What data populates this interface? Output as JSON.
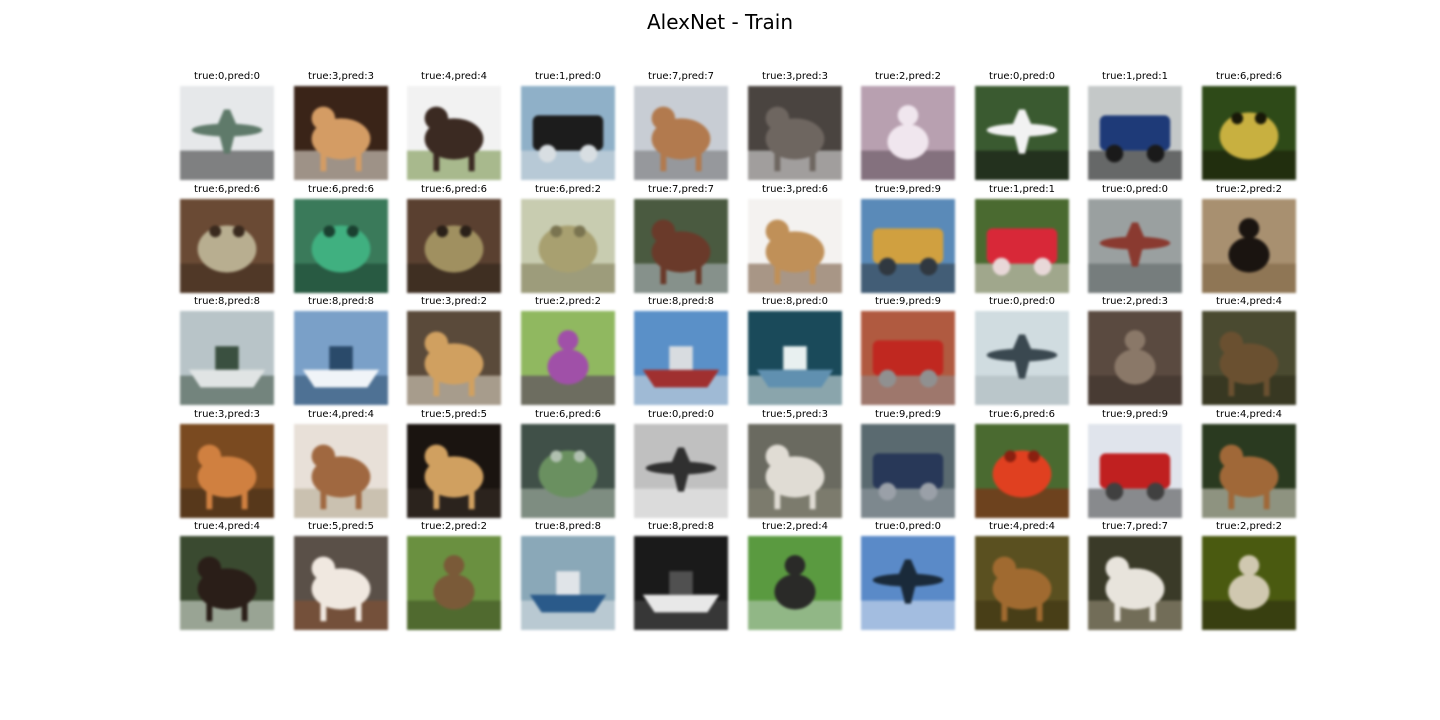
{
  "figure": {
    "title": "AlexNet - Train"
  },
  "samples": [
    {
      "label": "true:0,pred:0",
      "subject": "airplane-model",
      "bg": "#e6e8ea",
      "accent": "#5f7a6a",
      "dark": "#2a2a2a"
    },
    {
      "label": "true:3,pred:3",
      "subject": "cat-orange",
      "bg": "#3a2418",
      "accent": "#d49c64",
      "dark": "#f0ece4"
    },
    {
      "label": "true:4,pred:4",
      "subject": "deer-antlers",
      "bg": "#f2f2f2",
      "accent": "#3b2a22",
      "dark": "#6c8a3a"
    },
    {
      "label": "true:1,pred:0",
      "subject": "car-toy",
      "bg": "#8fb0c8",
      "accent": "#1c1c1c",
      "dark": "#d8dee2"
    },
    {
      "label": "true:7,pred:7",
      "subject": "horse-brown",
      "bg": "#c8cdd4",
      "accent": "#b27a4e",
      "dark": "#6d6d6d"
    },
    {
      "label": "true:3,pred:3",
      "subject": "cat-grey",
      "bg": "#4a4440",
      "accent": "#6e6660",
      "dark": "#e9e9e9"
    },
    {
      "label": "true:2,pred:2",
      "subject": "bird-pink",
      "bg": "#b8a0b0",
      "accent": "#f0e6ee",
      "dark": "#5a4a56"
    },
    {
      "label": "true:0,pred:0",
      "subject": "airplane-grass",
      "bg": "#3a5a30",
      "accent": "#f2f2f2",
      "dark": "#101010"
    },
    {
      "label": "true:1,pred:1",
      "subject": "car-blue",
      "bg": "#c4c8c8",
      "accent": "#1e3a78",
      "dark": "#1a1a1a"
    },
    {
      "label": "true:6,pred:6",
      "subject": "frog-yellow",
      "bg": "#2e4a18",
      "accent": "#c8b040",
      "dark": "#181808"
    },
    {
      "label": "true:6,pred:6",
      "subject": "frog-toad",
      "bg": "#6a4a34",
      "accent": "#b8ae90",
      "dark": "#3a2a1e"
    },
    {
      "label": "true:6,pred:6",
      "subject": "frog-green",
      "bg": "#3a7a5a",
      "accent": "#40b080",
      "dark": "#1a4030"
    },
    {
      "label": "true:6,pred:6",
      "subject": "frog-leaves",
      "bg": "#5a4030",
      "accent": "#a09060",
      "dark": "#2a2018"
    },
    {
      "label": "true:6,pred:2",
      "subject": "frog-pale",
      "bg": "#c8ccb0",
      "accent": "#a8a070",
      "dark": "#7a7450"
    },
    {
      "label": "true:7,pred:7",
      "subject": "horse-water",
      "bg": "#4a5a40",
      "accent": "#6a3a2a",
      "dark": "#b8c0c8"
    },
    {
      "label": "true:3,pred:6",
      "subject": "cat-kitten",
      "bg": "#f4f2f0",
      "accent": "#c09058",
      "dark": "#6a4a30"
    },
    {
      "label": "true:9,pred:9",
      "subject": "truck-yellow",
      "bg": "#5a8ab8",
      "accent": "#d0a040",
      "dark": "#303840"
    },
    {
      "label": "true:1,pred:1",
      "subject": "car-red",
      "bg": "#4a6a30",
      "accent": "#d82838",
      "dark": "#e8d8d8"
    },
    {
      "label": "true:0,pred:0",
      "subject": "airplane-runway",
      "bg": "#9aa0a0",
      "accent": "#8a3a30",
      "dark": "#5a6060"
    },
    {
      "label": "true:2,pred:2",
      "subject": "ostrich",
      "bg": "#a89070",
      "accent": "#1a1410",
      "dark": "#7a6040"
    },
    {
      "label": "true:8,pred:8",
      "subject": "ship-small",
      "bg": "#b8c4c8",
      "accent": "#e0e4e4",
      "dark": "#3a5040"
    },
    {
      "label": "true:8,pred:8",
      "subject": "ship-ferry",
      "bg": "#7aa0c8",
      "accent": "#f0f4f8",
      "dark": "#2a4a6a"
    },
    {
      "label": "true:3,pred:2",
      "subject": "cat-sign",
      "bg": "#5a4a3a",
      "accent": "#d0a060",
      "dark": "#e8e0d0"
    },
    {
      "label": "true:2,pred:2",
      "subject": "bird-purple",
      "bg": "#90b860",
      "accent": "#a050a8",
      "dark": "#503060"
    },
    {
      "label": "true:8,pred:8",
      "subject": "ship-harbor",
      "bg": "#5a90c8",
      "accent": "#a03030",
      "dark": "#d8dce0"
    },
    {
      "label": "true:8,pred:0",
      "subject": "ship-speedboat",
      "bg": "#1a4a5a",
      "accent": "#6090b0",
      "dark": "#e8f0f0"
    },
    {
      "label": "true:9,pred:9",
      "subject": "truck-fire",
      "bg": "#b05a40",
      "accent": "#c02820",
      "dark": "#909090"
    },
    {
      "label": "true:0,pred:0",
      "subject": "airplane-jet",
      "bg": "#d0dce0",
      "accent": "#3a4850",
      "dark": "#a8b4b8"
    },
    {
      "label": "true:2,pred:3",
      "subject": "bird-ostrich-neck",
      "bg": "#5a4a40",
      "accent": "#8a7868",
      "dark": "#3a3028"
    },
    {
      "label": "true:4,pred:4",
      "subject": "deer-dark",
      "bg": "#4a4a30",
      "accent": "#6a5030",
      "dark": "#2a2a18"
    },
    {
      "label": "true:3,pred:3",
      "subject": "cat-face",
      "bg": "#7a4a20",
      "accent": "#d08040",
      "dark": "#3a2a18"
    },
    {
      "label": "true:4,pred:4",
      "subject": "deer-painting",
      "bg": "#e8e0d8",
      "accent": "#a06840",
      "dark": "#b0a890"
    },
    {
      "label": "true:5,pred:5",
      "subject": "dog-puppy",
      "bg": "#1a1410",
      "accent": "#d0a060",
      "dark": "#3a3028"
    },
    {
      "label": "true:6,pred:6",
      "subject": "frog-statue",
      "bg": "#405048",
      "accent": "#6a9060",
      "dark": "#b0c0b0"
    },
    {
      "label": "true:0,pred:0",
      "subject": "airplane-bw",
      "bg": "#c0c0c0",
      "accent": "#303030",
      "dark": "#f0f0f0"
    },
    {
      "label": "true:5,pred:3",
      "subject": "dog-white",
      "bg": "#6a6a60",
      "accent": "#e0dcd4",
      "dark": "#8a8878"
    },
    {
      "label": "true:9,pred:9",
      "subject": "truck-blue",
      "bg": "#5a6a70",
      "accent": "#283858",
      "dark": "#9aa0a8"
    },
    {
      "label": "true:6,pred:6",
      "subject": "frog-red",
      "bg": "#4a6a30",
      "accent": "#e04020",
      "dark": "#8a2010"
    },
    {
      "label": "true:9,pred:9",
      "subject": "truck-red",
      "bg": "#e0e4ec",
      "accent": "#c02020",
      "dark": "#404040"
    },
    {
      "label": "true:4,pred:4",
      "subject": "deer-forest",
      "bg": "#2a3a20",
      "accent": "#a06838",
      "dark": "#e0dcd0"
    },
    {
      "label": "true:4,pred:4",
      "subject": "moose",
      "bg": "#3a4a30",
      "accent": "#2a1e18",
      "dark": "#e8eee8"
    },
    {
      "label": "true:5,pred:5",
      "subject": "dog-fluffy",
      "bg": "#5a5048",
      "accent": "#f0e8e0",
      "dark": "#8a5030"
    },
    {
      "label": "true:2,pred:2",
      "subject": "bird-sparrow",
      "bg": "#6a9040",
      "accent": "#7a5a38",
      "dark": "#3a4a20"
    },
    {
      "label": "true:8,pred:8",
      "subject": "ship-boat",
      "bg": "#8aa8b8",
      "accent": "#2a5a8a",
      "dark": "#e0e4e8"
    },
    {
      "label": "true:8,pred:8",
      "subject": "ship-dark-boat",
      "bg": "#1a1a1a",
      "accent": "#e8e8e8",
      "dark": "#505050"
    },
    {
      "label": "true:2,pred:4",
      "subject": "bird-swan-dark",
      "bg": "#5a9a40",
      "accent": "#2a2a28",
      "dark": "#c0d0c0"
    },
    {
      "label": "true:0,pred:0",
      "subject": "airplane-sky",
      "bg": "#5a8ac8",
      "accent": "#1a2a3a",
      "dark": "#e0e8f4"
    },
    {
      "label": "true:4,pred:4",
      "subject": "deer-field",
      "bg": "#5a5020",
      "accent": "#a06a30",
      "dark": "#3a3010"
    },
    {
      "label": "true:7,pred:7",
      "subject": "horse-rider",
      "bg": "#3a3a28",
      "accent": "#e8e4dc",
      "dark": "#a09880"
    },
    {
      "label": "true:2,pred:2",
      "subject": "ostrich-head",
      "bg": "#4a5a10",
      "accent": "#d0c8b0",
      "dark": "#2a2a10"
    }
  ]
}
